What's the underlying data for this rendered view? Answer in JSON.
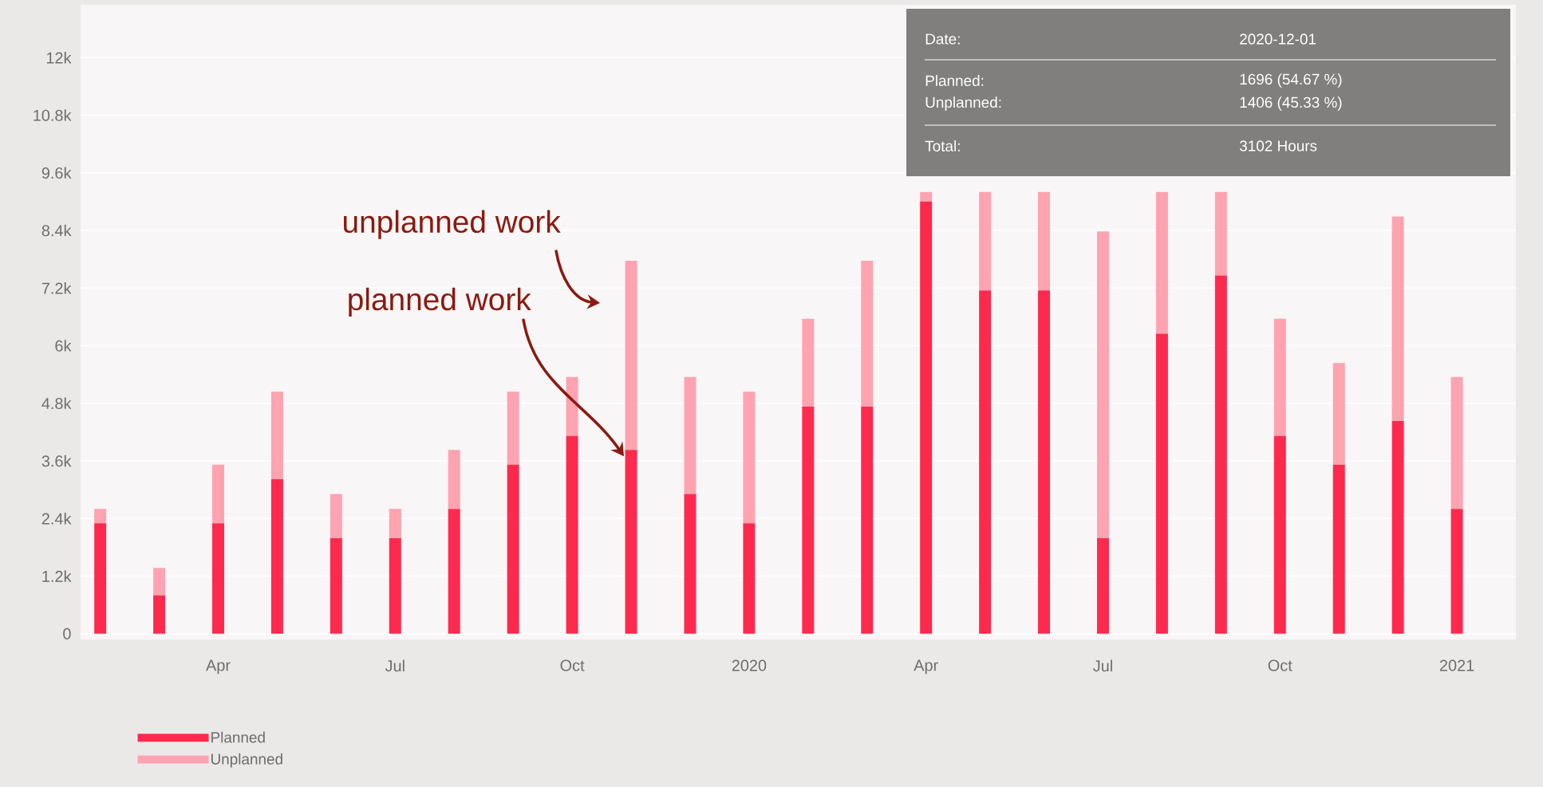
{
  "chart_data": {
    "type": "bar",
    "stacked": true,
    "x": [
      "2019-02",
      "2019-03",
      "2019-04",
      "2019-05",
      "2019-06",
      "2019-07",
      "2019-08",
      "2019-09",
      "2019-10",
      "2019-11",
      "2019-12",
      "2020-01",
      "2020-02",
      "2020-03",
      "2020-04",
      "2020-05",
      "2020-06",
      "2020-07",
      "2020-08",
      "2020-09",
      "2020-10",
      "2020-11",
      "2020-12",
      "2021-01"
    ],
    "series": [
      {
        "name": "Planned",
        "color": "#fe2a4e",
        "values": [
          2300,
          800,
          2300,
          3220,
          1990,
          1990,
          2600,
          3520,
          4120,
          3830,
          2910,
          2300,
          4730,
          4730,
          9000,
          7150,
          7150,
          1990,
          6250,
          7460,
          4120,
          3520,
          4430,
          2600
        ]
      },
      {
        "name": "Unplanned",
        "color": "#ffa3b1",
        "values": [
          300,
          570,
          1220,
          1820,
          920,
          610,
          1230,
          1520,
          1230,
          3940,
          2440,
          2740,
          1830,
          3040,
          200,
          2050,
          2050,
          6390,
          2950,
          1740,
          2440,
          2120,
          4260,
          2750
        ]
      }
    ],
    "xlim": [
      "2019-01-21",
      "2021-02-01"
    ],
    "xticks": [
      {
        "value": "2019-04",
        "label": "Apr"
      },
      {
        "value": "2019-07",
        "label": "Jul"
      },
      {
        "value": "2019-10",
        "label": "Oct"
      },
      {
        "value": "2020-01",
        "label": "2020"
      },
      {
        "value": "2020-04",
        "label": "Apr"
      },
      {
        "value": "2020-07",
        "label": "Jul"
      },
      {
        "value": "2020-10",
        "label": "Oct"
      },
      {
        "value": "2021-01",
        "label": "2021"
      }
    ],
    "ylim": [
      -120,
      13100
    ],
    "yticks": [
      0,
      {
        "value": 1200,
        "label": "1.2k"
      },
      {
        "value": 2400,
        "label": "2.4k"
      },
      {
        "value": 3600,
        "label": "3.6k"
      },
      {
        "value": 4800,
        "label": "4.8k"
      },
      {
        "value": 6000,
        "label": "6k"
      },
      {
        "value": 7200,
        "label": "7.2k"
      },
      {
        "value": 8400,
        "label": "8.4k"
      },
      {
        "value": 9600,
        "label": "9.6k"
      },
      {
        "value": 10800,
        "label": "10.8k"
      },
      {
        "value": 12000,
        "label": "12k"
      }
    ],
    "grid": "y",
    "legend": "bottom",
    "annotations": [
      "Date:",
      "2020-12-01",
      "Planned:",
      "1696 (54.67 %)",
      "Unplanned:",
      "1406 (45.33 %)",
      "Total:",
      "3102 Hours",
      {
        "text": "unplanned work",
        "x": "2019-11",
        "y": 7770
      },
      "planned work"
    ]
  }
}
